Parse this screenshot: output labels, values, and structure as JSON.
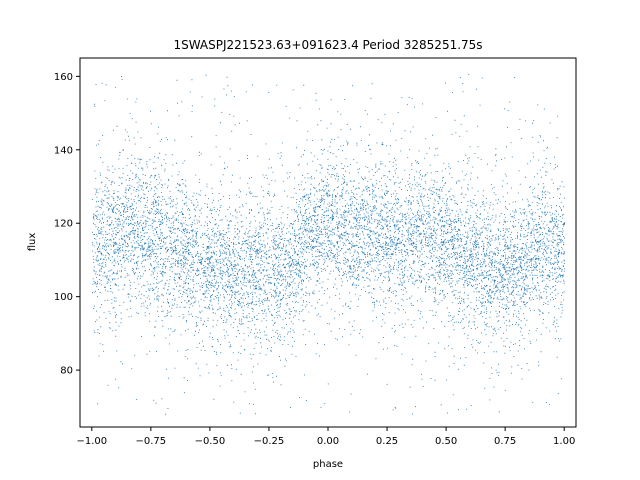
{
  "chart_data": {
    "type": "scatter",
    "title": "1SWASPJ221523.63+091623.4 Period 3285251.75s",
    "xlabel": "phase",
    "ylabel": "flux",
    "xlim": [
      -1.05,
      1.05
    ],
    "ylim": [
      64.5,
      165
    ],
    "xticks": [
      -1.0,
      -0.75,
      -0.5,
      -0.25,
      0.0,
      0.25,
      0.5,
      0.75,
      1.0
    ],
    "xtick_labels": [
      "−1.00",
      "−0.75",
      "−0.50",
      "−0.25",
      "0.00",
      "0.25",
      "0.50",
      "0.75",
      "1.00"
    ],
    "yticks": [
      80,
      100,
      120,
      140,
      160
    ],
    "ytick_labels": [
      "80",
      "100",
      "120",
      "140",
      "160"
    ],
    "grid": false,
    "marker_color": "#1f77b4",
    "x_range": [
      -1.0,
      1.0
    ],
    "band_centers": [
      [
        -1.0,
        112
      ],
      [
        -0.95,
        115
      ],
      [
        -0.9,
        118
      ],
      [
        -0.85,
        120
      ],
      [
        -0.8,
        119
      ],
      [
        -0.75,
        116
      ],
      [
        -0.7,
        115
      ],
      [
        -0.65,
        114
      ],
      [
        -0.6,
        113
      ],
      [
        -0.55,
        111
      ],
      [
        -0.5,
        110
      ],
      [
        -0.45,
        108
      ],
      [
        -0.4,
        106
      ],
      [
        -0.35,
        107
      ],
      [
        -0.3,
        108
      ],
      [
        -0.25,
        107
      ],
      [
        -0.2,
        108
      ],
      [
        -0.15,
        110
      ],
      [
        -0.1,
        115
      ],
      [
        -0.05,
        118
      ],
      [
        0.0,
        119
      ],
      [
        0.05,
        118
      ],
      [
        0.1,
        116
      ],
      [
        0.15,
        117
      ],
      [
        0.2,
        118
      ],
      [
        0.25,
        117
      ],
      [
        0.3,
        116
      ],
      [
        0.35,
        117
      ],
      [
        0.4,
        118
      ],
      [
        0.45,
        116
      ],
      [
        0.5,
        114
      ],
      [
        0.55,
        112
      ],
      [
        0.6,
        110
      ],
      [
        0.65,
        109
      ],
      [
        0.7,
        108
      ],
      [
        0.75,
        107
      ],
      [
        0.8,
        109
      ],
      [
        0.85,
        112
      ],
      [
        0.9,
        114
      ],
      [
        0.95,
        113
      ],
      [
        1.0,
        112
      ]
    ],
    "band_spread": 10,
    "outlier_range": [
      68,
      161
    ],
    "point_count": 9000
  }
}
